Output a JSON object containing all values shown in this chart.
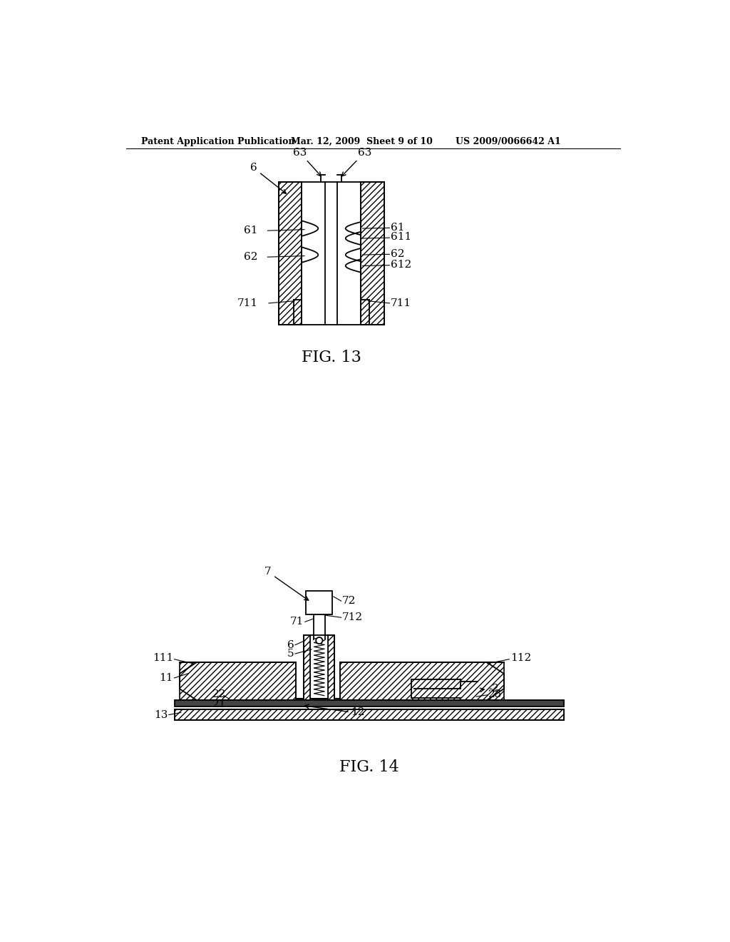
{
  "header_left": "Patent Application Publication",
  "header_mid": "Mar. 12, 2009  Sheet 9 of 10",
  "header_right": "US 2009/0066642 A1",
  "fig13_label": "FIG. 13",
  "fig14_label": "FIG. 14",
  "bg_color": "#ffffff",
  "line_color": "#000000"
}
